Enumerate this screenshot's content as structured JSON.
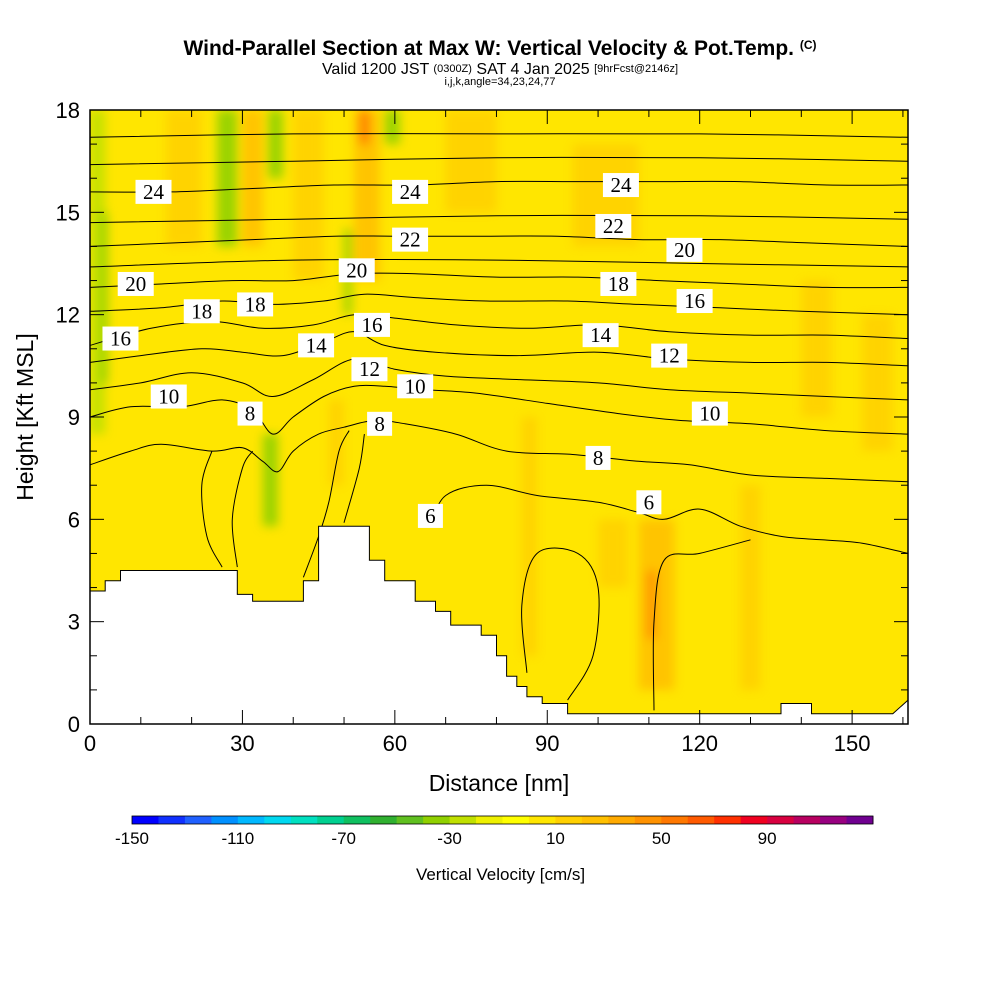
{
  "title": {
    "main": "Wind-Parallel Section at Max W: Vertical Velocity & Pot.Temp.",
    "copyright": "(C)",
    "valid_prefix": "Valid 1200 JST",
    "valid_utc": "(0300Z)",
    "valid_date": "SAT 4 Jan 2025",
    "forecast": "[9hrFcst@2146z]",
    "indices": "i,j,k,angle=34,23,24,77"
  },
  "chart_data": {
    "type": "heatmap",
    "xlabel": "Distance [nm]",
    "ylabel": "Height [Kft MSL]",
    "xlim": [
      0,
      161
    ],
    "ylim": [
      0,
      18
    ],
    "x_ticks": [
      "0",
      "30",
      "60",
      "90",
      "120",
      "150"
    ],
    "y_ticks": [
      "0",
      "3",
      "6",
      "9",
      "12",
      "15",
      "18"
    ],
    "colorbar": {
      "label": "Vertical Velocity [cm/s]",
      "tick_labels": [
        "-150",
        "-110",
        "-70",
        "-30",
        "10",
        "50",
        "90"
      ],
      "range": [
        -150,
        130
      ],
      "step": 10,
      "colors": [
        "#0000ff",
        "#1030ff",
        "#2060ff",
        "#0090ff",
        "#00b8ff",
        "#00d8f0",
        "#00e0c0",
        "#00d090",
        "#10c060",
        "#30b030",
        "#60c020",
        "#90d000",
        "#c0e000",
        "#eef000",
        "#ffff00",
        "#ffe600",
        "#ffd000",
        "#ffc000",
        "#ffaa00",
        "#ff9200",
        "#ff7800",
        "#ff5a00",
        "#ff3000",
        "#f00020",
        "#d80040",
        "#b80060",
        "#980080",
        "#700090"
      ]
    },
    "terrain_kft": [
      [
        0,
        3.9
      ],
      [
        3,
        3.9
      ],
      [
        3,
        4.2
      ],
      [
        6,
        4.2
      ],
      [
        6,
        4.5
      ],
      [
        29,
        4.5
      ],
      [
        29,
        3.8
      ],
      [
        32,
        3.8
      ],
      [
        32,
        3.6
      ],
      [
        42,
        3.6
      ],
      [
        42,
        4.2
      ],
      [
        45,
        4.2
      ],
      [
        45,
        5.8
      ],
      [
        55,
        5.8
      ],
      [
        55,
        4.8
      ],
      [
        58,
        4.8
      ],
      [
        58,
        4.2
      ],
      [
        64,
        4.2
      ],
      [
        64,
        3.6
      ],
      [
        68,
        3.6
      ],
      [
        68,
        3.3
      ],
      [
        71,
        3.3
      ],
      [
        71,
        2.9
      ],
      [
        77,
        2.9
      ],
      [
        77,
        2.6
      ],
      [
        80,
        2.6
      ],
      [
        80,
        2.0
      ],
      [
        82,
        2.0
      ],
      [
        82,
        1.4
      ],
      [
        84,
        1.4
      ],
      [
        84,
        1.1
      ],
      [
        86,
        1.1
      ],
      [
        86,
        0.8
      ],
      [
        89,
        0.8
      ],
      [
        89,
        0.6
      ],
      [
        94,
        0.6
      ],
      [
        94,
        0.3
      ],
      [
        136,
        0.3
      ],
      [
        136,
        0.6
      ],
      [
        142,
        0.6
      ],
      [
        142,
        0.3
      ],
      [
        158,
        0.3
      ],
      [
        161,
        0.7
      ]
    ],
    "theta_contours": [
      {
        "value": 6,
        "points": [
          [
            67,
            5.8
          ],
          [
            70,
            6.7
          ],
          [
            78,
            7.0
          ],
          [
            88,
            6.7
          ],
          [
            100,
            6.5
          ],
          [
            108,
            6.2
          ],
          [
            113,
            6.0
          ],
          [
            120,
            6.3
          ],
          [
            128,
            5.8
          ],
          [
            136,
            5.5
          ],
          [
            144,
            5.4
          ],
          [
            152,
            5.3
          ],
          [
            161,
            5.0
          ]
        ]
      },
      {
        "value": 8,
        "points": [
          [
            0,
            7.6
          ],
          [
            8,
            8.0
          ],
          [
            14,
            8.2
          ],
          [
            24,
            8.0
          ],
          [
            30,
            8.1
          ],
          [
            34,
            7.7
          ],
          [
            37,
            7.4
          ],
          [
            40,
            8.0
          ],
          [
            45,
            8.5
          ],
          [
            50,
            8.7
          ],
          [
            56,
            8.9
          ],
          [
            62,
            8.8
          ],
          [
            72,
            8.5
          ],
          [
            82,
            8.0
          ],
          [
            95,
            7.9
          ],
          [
            108,
            7.7
          ],
          [
            118,
            7.6
          ],
          [
            130,
            7.3
          ],
          [
            145,
            7.2
          ],
          [
            161,
            7.1
          ]
        ]
      },
      {
        "value": 10,
        "points": [
          [
            0,
            9.0
          ],
          [
            8,
            9.3
          ],
          [
            18,
            9.3
          ],
          [
            26,
            9.5
          ],
          [
            32,
            9.2
          ],
          [
            36,
            8.5
          ],
          [
            40,
            9.0
          ],
          [
            46,
            9.6
          ],
          [
            52,
            9.9
          ],
          [
            58,
            9.9
          ],
          [
            66,
            9.8
          ],
          [
            76,
            9.7
          ],
          [
            90,
            9.4
          ],
          [
            104,
            9.1
          ],
          [
            116,
            8.9
          ],
          [
            130,
            8.8
          ],
          [
            145,
            8.6
          ],
          [
            161,
            8.5
          ]
        ]
      },
      {
        "value": 12,
        "points": [
          [
            0,
            9.8
          ],
          [
            10,
            10.0
          ],
          [
            20,
            10.3
          ],
          [
            30,
            10.0
          ],
          [
            36,
            9.6
          ],
          [
            44,
            10.1
          ],
          [
            52,
            10.7
          ],
          [
            60,
            10.4
          ],
          [
            70,
            10.2
          ],
          [
            84,
            10.1
          ],
          [
            100,
            10.0
          ],
          [
            114,
            9.8
          ],
          [
            130,
            9.7
          ],
          [
            145,
            9.6
          ],
          [
            161,
            9.5
          ]
        ]
      },
      {
        "value": 14,
        "points": [
          [
            0,
            10.6
          ],
          [
            10,
            10.8
          ],
          [
            22,
            11.0
          ],
          [
            30,
            10.9
          ],
          [
            38,
            10.8
          ],
          [
            46,
            11.2
          ],
          [
            52,
            11.5
          ],
          [
            58,
            11.1
          ],
          [
            68,
            10.9
          ],
          [
            84,
            10.8
          ],
          [
            100,
            10.9
          ],
          [
            114,
            10.7
          ],
          [
            130,
            10.6
          ],
          [
            145,
            10.6
          ],
          [
            161,
            10.5
          ]
        ]
      },
      {
        "value": 16,
        "points": [
          [
            0,
            11.1
          ],
          [
            12,
            11.6
          ],
          [
            24,
            11.8
          ],
          [
            34,
            11.6
          ],
          [
            44,
            11.7
          ],
          [
            52,
            12.0
          ],
          [
            60,
            11.9
          ],
          [
            72,
            11.7
          ],
          [
            86,
            11.6
          ],
          [
            100,
            11.7
          ],
          [
            114,
            11.5
          ],
          [
            130,
            11.4
          ],
          [
            145,
            11.4
          ],
          [
            161,
            11.3
          ]
        ]
      },
      {
        "value": 18,
        "points": [
          [
            0,
            12.1
          ],
          [
            14,
            12.2
          ],
          [
            26,
            12.4
          ],
          [
            36,
            12.3
          ],
          [
            46,
            12.4
          ],
          [
            54,
            12.6
          ],
          [
            64,
            12.5
          ],
          [
            78,
            12.4
          ],
          [
            94,
            12.4
          ],
          [
            108,
            12.3
          ],
          [
            124,
            12.2
          ],
          [
            140,
            12.1
          ],
          [
            161,
            12.0
          ]
        ]
      },
      {
        "value": 20,
        "points": [
          [
            0,
            12.8
          ],
          [
            14,
            12.9
          ],
          [
            28,
            13.0
          ],
          [
            40,
            13.0
          ],
          [
            52,
            13.2
          ],
          [
            64,
            13.2
          ],
          [
            80,
            13.1
          ],
          [
            96,
            13.1
          ],
          [
            112,
            13.0
          ],
          [
            128,
            12.9
          ],
          [
            145,
            12.8
          ],
          [
            161,
            12.8
          ]
        ]
      },
      {
        "value": 22,
        "points": [
          [
            0,
            14.0
          ],
          [
            16,
            14.1
          ],
          [
            32,
            14.2
          ],
          [
            48,
            14.3
          ],
          [
            60,
            14.3
          ],
          [
            76,
            14.3
          ],
          [
            92,
            14.3
          ],
          [
            108,
            14.2
          ],
          [
            124,
            14.2
          ],
          [
            142,
            14.1
          ],
          [
            161,
            14.0
          ]
        ]
      },
      {
        "value": 24,
        "points": [
          [
            0,
            15.6
          ],
          [
            16,
            15.6
          ],
          [
            32,
            15.7
          ],
          [
            48,
            15.8
          ],
          [
            64,
            15.8
          ],
          [
            80,
            15.9
          ],
          [
            96,
            15.9
          ],
          [
            112,
            15.9
          ],
          [
            128,
            15.9
          ],
          [
            145,
            15.8
          ],
          [
            161,
            15.8
          ]
        ]
      }
    ],
    "extra_contours": [
      [
        [
          0,
          14.7
        ],
        [
          40,
          14.8
        ],
        [
          80,
          14.9
        ],
        [
          120,
          14.9
        ],
        [
          161,
          14.8
        ]
      ],
      [
        [
          0,
          16.4
        ],
        [
          40,
          16.5
        ],
        [
          80,
          16.6
        ],
        [
          120,
          16.6
        ],
        [
          161,
          16.5
        ]
      ],
      [
        [
          0,
          17.2
        ],
        [
          40,
          17.3
        ],
        [
          80,
          17.3
        ],
        [
          120,
          17.3
        ],
        [
          161,
          17.2
        ]
      ],
      [
        [
          0,
          13.4
        ],
        [
          40,
          13.6
        ],
        [
          80,
          13.6
        ],
        [
          120,
          13.5
        ],
        [
          161,
          13.4
        ]
      ],
      [
        [
          26,
          4.6
        ],
        [
          23,
          5.5
        ],
        [
          22,
          7.0
        ],
        [
          24,
          8.0
        ]
      ],
      [
        [
          29,
          4.6
        ],
        [
          28,
          6.0
        ],
        [
          30,
          7.5
        ],
        [
          32,
          8.0
        ]
      ],
      [
        [
          42,
          4.3
        ],
        [
          45,
          5.5
        ],
        [
          47,
          6.5
        ],
        [
          49,
          8.0
        ],
        [
          51,
          8.6
        ]
      ],
      [
        [
          50,
          5.9
        ],
        [
          53,
          7.5
        ],
        [
          54,
          8.5
        ]
      ],
      [
        [
          94,
          0.7
        ],
        [
          99,
          2.0
        ],
        [
          100,
          4.0
        ],
        [
          96,
          5.0
        ],
        [
          88,
          5.0
        ],
        [
          85,
          3.5
        ],
        [
          86,
          1.5
        ]
      ],
      [
        [
          111,
          0.4
        ],
        [
          111,
          3.0
        ],
        [
          113,
          4.8
        ],
        [
          120,
          5.0
        ],
        [
          130,
          5.4
        ]
      ]
    ],
    "contour_labels": [
      {
        "text": "24",
        "x": 12.5,
        "y": 15.6
      },
      {
        "text": "24",
        "x": 63,
        "y": 15.6
      },
      {
        "text": "24",
        "x": 104.5,
        "y": 15.8
      },
      {
        "text": "22",
        "x": 63,
        "y": 14.2
      },
      {
        "text": "22",
        "x": 103,
        "y": 14.6
      },
      {
        "text": "20",
        "x": 9,
        "y": 12.9
      },
      {
        "text": "20",
        "x": 52.5,
        "y": 13.3
      },
      {
        "text": "20",
        "x": 117,
        "y": 13.9
      },
      {
        "text": "18",
        "x": 22,
        "y": 12.1
      },
      {
        "text": "18",
        "x": 32.5,
        "y": 12.3
      },
      {
        "text": "18",
        "x": 104,
        "y": 12.9
      },
      {
        "text": "16",
        "x": 6,
        "y": 11.3
      },
      {
        "text": "16",
        "x": 55.5,
        "y": 11.7
      },
      {
        "text": "16",
        "x": 119,
        "y": 12.4
      },
      {
        "text": "14",
        "x": 44.5,
        "y": 11.1
      },
      {
        "text": "14",
        "x": 100.5,
        "y": 11.4
      },
      {
        "text": "12",
        "x": 55,
        "y": 10.4
      },
      {
        "text": "12",
        "x": 114,
        "y": 10.8
      },
      {
        "text": "10",
        "x": 15.5,
        "y": 9.6
      },
      {
        "text": "10",
        "x": 64,
        "y": 9.9
      },
      {
        "text": "10",
        "x": 122,
        "y": 9.1
      },
      {
        "text": "8",
        "x": 31.5,
        "y": 9.1
      },
      {
        "text": "8",
        "x": 57,
        "y": 8.8
      },
      {
        "text": "8",
        "x": 100,
        "y": 7.8
      },
      {
        "text": "6",
        "x": 67,
        "y": 6.1
      },
      {
        "text": "6",
        "x": 110,
        "y": 6.5
      }
    ],
    "velocity_field": {
      "background": "#ffe600",
      "features": [
        {
          "x0": 0,
          "x1": 3,
          "y0": 8.5,
          "y1": 18,
          "color": "#c0e000"
        },
        {
          "x0": 2,
          "x1": 3.5,
          "y0": 10,
          "y1": 15,
          "color": "#90d000"
        },
        {
          "x0": 25,
          "x1": 29,
          "y0": 14,
          "y1": 18,
          "color": "#90d000"
        },
        {
          "x0": 35,
          "x1": 38,
          "y0": 16,
          "y1": 18,
          "color": "#90d000"
        },
        {
          "x0": 34,
          "x1": 37,
          "y0": 5.8,
          "y1": 8.5,
          "color": "#90d000"
        },
        {
          "x0": 50,
          "x1": 51.5,
          "y0": 12,
          "y1": 14.5,
          "color": "#90d000"
        },
        {
          "x0": 58,
          "x1": 61,
          "y0": 17,
          "y1": 18,
          "color": "#90d000"
        },
        {
          "x0": 15,
          "x1": 22,
          "y0": 14,
          "y1": 18,
          "color": "#ffd000"
        },
        {
          "x0": 30,
          "x1": 34,
          "y0": 14,
          "y1": 18,
          "color": "#ffc000"
        },
        {
          "x0": 40,
          "x1": 46,
          "y0": 13,
          "y1": 18,
          "color": "#ffd000"
        },
        {
          "x0": 52,
          "x1": 57,
          "y0": 13,
          "y1": 18,
          "color": "#ffc000"
        },
        {
          "x0": 53,
          "x1": 55,
          "y0": 17,
          "y1": 18,
          "color": "#ff7800"
        },
        {
          "x0": 47,
          "x1": 50,
          "y0": 7,
          "y1": 9.5,
          "color": "#ffd000"
        },
        {
          "x0": 85,
          "x1": 88,
          "y0": 2,
          "y1": 9,
          "color": "#ffd000"
        },
        {
          "x0": 108,
          "x1": 115,
          "y0": 1,
          "y1": 6,
          "color": "#ffc000"
        },
        {
          "x0": 109.5,
          "x1": 111.5,
          "y0": 2.5,
          "y1": 4.5,
          "color": "#ff9200"
        },
        {
          "x0": 128,
          "x1": 132,
          "y0": 1,
          "y1": 7,
          "color": "#ffd000"
        },
        {
          "x0": 140,
          "x1": 146,
          "y0": 9,
          "y1": 13,
          "color": "#ffd000"
        },
        {
          "x0": 152,
          "x1": 158,
          "y0": 8,
          "y1": 12,
          "color": "#ffd000"
        },
        {
          "x0": 95,
          "x1": 108,
          "y0": 14,
          "y1": 17,
          "color": "#ffd000"
        },
        {
          "x0": 70,
          "x1": 80,
          "y0": 15,
          "y1": 18,
          "color": "#ffd000"
        },
        {
          "x0": 100,
          "x1": 106,
          "y0": 4,
          "y1": 6,
          "color": "#ffd000"
        }
      ]
    }
  }
}
